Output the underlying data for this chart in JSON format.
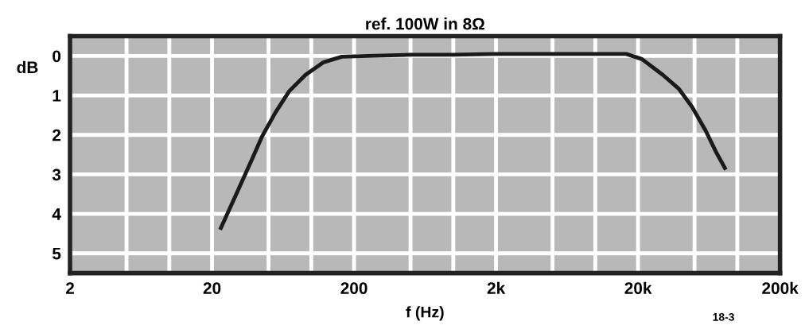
{
  "chart_data": {
    "type": "line",
    "title": "ref. 100W in 8Ω",
    "xlabel": "f (Hz)",
    "ylabel": "dB",
    "log": "x",
    "grid": true,
    "marker": "none",
    "line_style": "solid",
    "xlim": [
      2,
      200000
    ],
    "ylim": [
      5.5,
      -0.5
    ],
    "xticks": [
      2,
      {
        "value": 5,
        "label": null
      },
      {
        "value": 10,
        "label": null
      },
      20,
      {
        "value": 50,
        "label": null
      },
      {
        "value": 100,
        "label": null
      },
      200,
      {
        "value": 500,
        "label": null
      },
      {
        "value": 1000,
        "label": null
      },
      {
        "value": 2000,
        "label": "2k"
      },
      {
        "value": 5000,
        "label": null
      },
      {
        "value": 10000,
        "label": null
      },
      {
        "value": 20000,
        "label": "20k"
      },
      {
        "value": 50000,
        "label": null
      },
      {
        "value": 100000,
        "label": null
      },
      {
        "value": 200000,
        "label": "200k"
      }
    ],
    "yticks": [
      0,
      1,
      2,
      3,
      4,
      5
    ],
    "annotations": [
      "18-3"
    ],
    "series": [
      {
        "color": "#1a1a1a",
        "x": [
          22.8,
          30.6,
          38,
          45,
          56,
          70,
          91,
          122,
          164,
          250,
          500,
          1000,
          2000,
          5000,
          10000,
          16500,
          21300,
          29900,
          38700,
          48000,
          60000,
          71000,
          83000
        ],
        "values": [
          4.4,
          3.39,
          2.64,
          2.04,
          1.43,
          0.89,
          0.48,
          0.16,
          0.02,
          0,
          -0.03,
          -0.03,
          -0.05,
          -0.05,
          -0.05,
          -0.05,
          0.08,
          0.48,
          0.83,
          1.29,
          1.9,
          2.44,
          2.88
        ]
      }
    ]
  }
}
